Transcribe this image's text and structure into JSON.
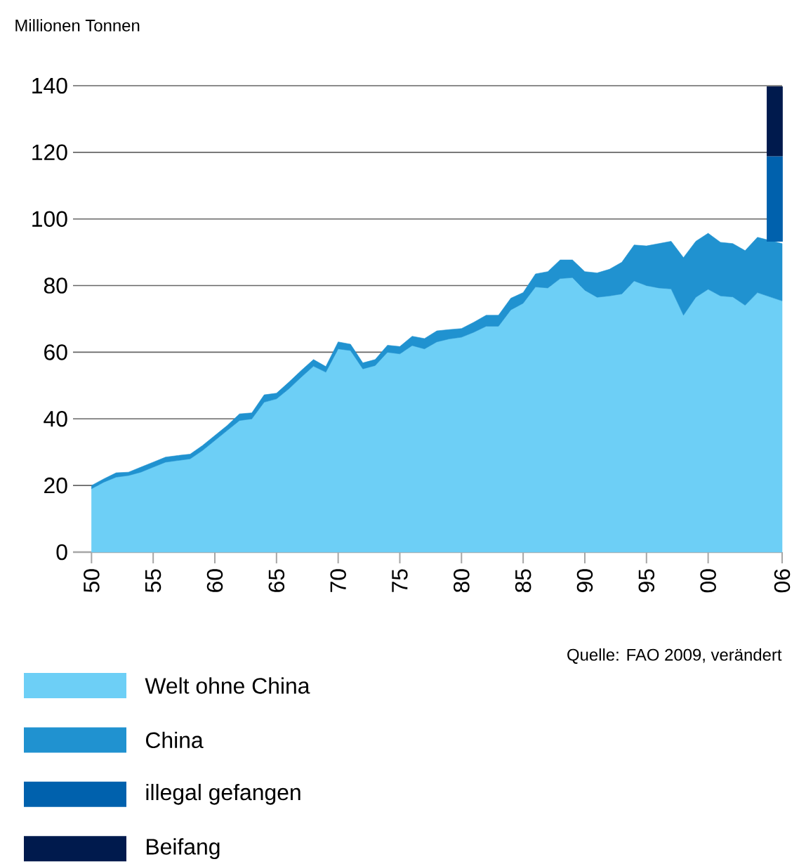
{
  "chart_data": {
    "type": "area",
    "stacked": true,
    "ylabel": "Millionen Tonnen",
    "annotations": [
      "Quelle: FAO 2009, verändert"
    ],
    "x": [
      1950,
      1951,
      1952,
      1953,
      1954,
      1955,
      1956,
      1957,
      1958,
      1959,
      1960,
      1961,
      1962,
      1963,
      1964,
      1965,
      1966,
      1967,
      1968,
      1969,
      1970,
      1971,
      1972,
      1973,
      1974,
      1975,
      1976,
      1977,
      1978,
      1979,
      1980,
      1981,
      1982,
      1983,
      1984,
      1985,
      1986,
      1987,
      1988,
      1989,
      1990,
      1991,
      1992,
      1993,
      1994,
      1995,
      1996,
      1997,
      1998,
      1999,
      2000,
      2001,
      2002,
      2003,
      2004,
      2005,
      2006
    ],
    "series": [
      {
        "name": "Welt ohne China",
        "color": "#6dcff6",
        "values": [
          19.0,
          21,
          22.5,
          23,
          24,
          25.5,
          27,
          27.5,
          28,
          30.5,
          33.5,
          36.5,
          39.5,
          40,
          45,
          46,
          49,
          52.5,
          55.8,
          54,
          61,
          60.5,
          55,
          56,
          60,
          59.5,
          62,
          61,
          63.1,
          64,
          64.5,
          66,
          67.8,
          67.8,
          72.7,
          74.7,
          79.6,
          79.3,
          82.1,
          82.4,
          78.6,
          76.5,
          76.9,
          77.5,
          81.4,
          80.0,
          79.3,
          79.0,
          71.1,
          76.5,
          78.9,
          76.9,
          76.6,
          74.1,
          77.9,
          null,
          75.4
        ]
      },
      {
        "name": "China",
        "color": "#2092d0",
        "values": [
          1.0,
          1.0,
          1.3,
          1.0,
          1.5,
          1.5,
          1.5,
          1.5,
          1.4,
          1.5,
          1.5,
          1.5,
          2.0,
          1.8,
          2.2,
          1.7,
          2.0,
          2.0,
          2.0,
          1.7,
          2.1,
          1.9,
          1.8,
          1.8,
          2.1,
          2.2,
          2.8,
          3.1,
          3.3,
          2.8,
          2.6,
          3.0,
          3.3,
          3.3,
          3.5,
          3.2,
          3.9,
          4.9,
          5.6,
          5.3,
          5.6,
          7.3,
          8.0,
          9.5,
          10.8,
          11.9,
          13.3,
          14.3,
          17.3,
          16.8,
          16.8,
          16.1,
          16.0,
          16.4,
          16.6,
          null,
          17.2
        ]
      },
      {
        "name": "illegal gefangen",
        "color": "#0061ad",
        "type": "bar",
        "x": [
          2005.4
        ],
        "base": [
          93.2
        ],
        "values": [
          25.6
        ]
      },
      {
        "name": "Beifang",
        "color": "#001a4d",
        "type": "bar",
        "x": [
          2005.4
        ],
        "base": [
          118.8
        ],
        "values": [
          21.0
        ]
      }
    ],
    "xlim": [
      1948.5,
      2006
    ],
    "xticks": [
      {
        "value": 1950,
        "label": "50"
      },
      {
        "value": 1955,
        "label": "55"
      },
      {
        "value": 1960,
        "label": "60"
      },
      {
        "value": 1965,
        "label": "65"
      },
      {
        "value": 1970,
        "label": "70"
      },
      {
        "value": 1975,
        "label": "75"
      },
      {
        "value": 1980,
        "label": "80"
      },
      {
        "value": 1985,
        "label": "85"
      },
      {
        "value": 1990,
        "label": "90"
      },
      {
        "value": 1995,
        "label": "95"
      },
      {
        "value": 2000,
        "label": "00"
      },
      {
        "value": 2006,
        "label": "06"
      }
    ],
    "ylim": [
      0,
      140
    ],
    "yticks": [
      0,
      20,
      40,
      60,
      80,
      100,
      120,
      140
    ],
    "grid": "y",
    "legend": "bottom"
  }
}
